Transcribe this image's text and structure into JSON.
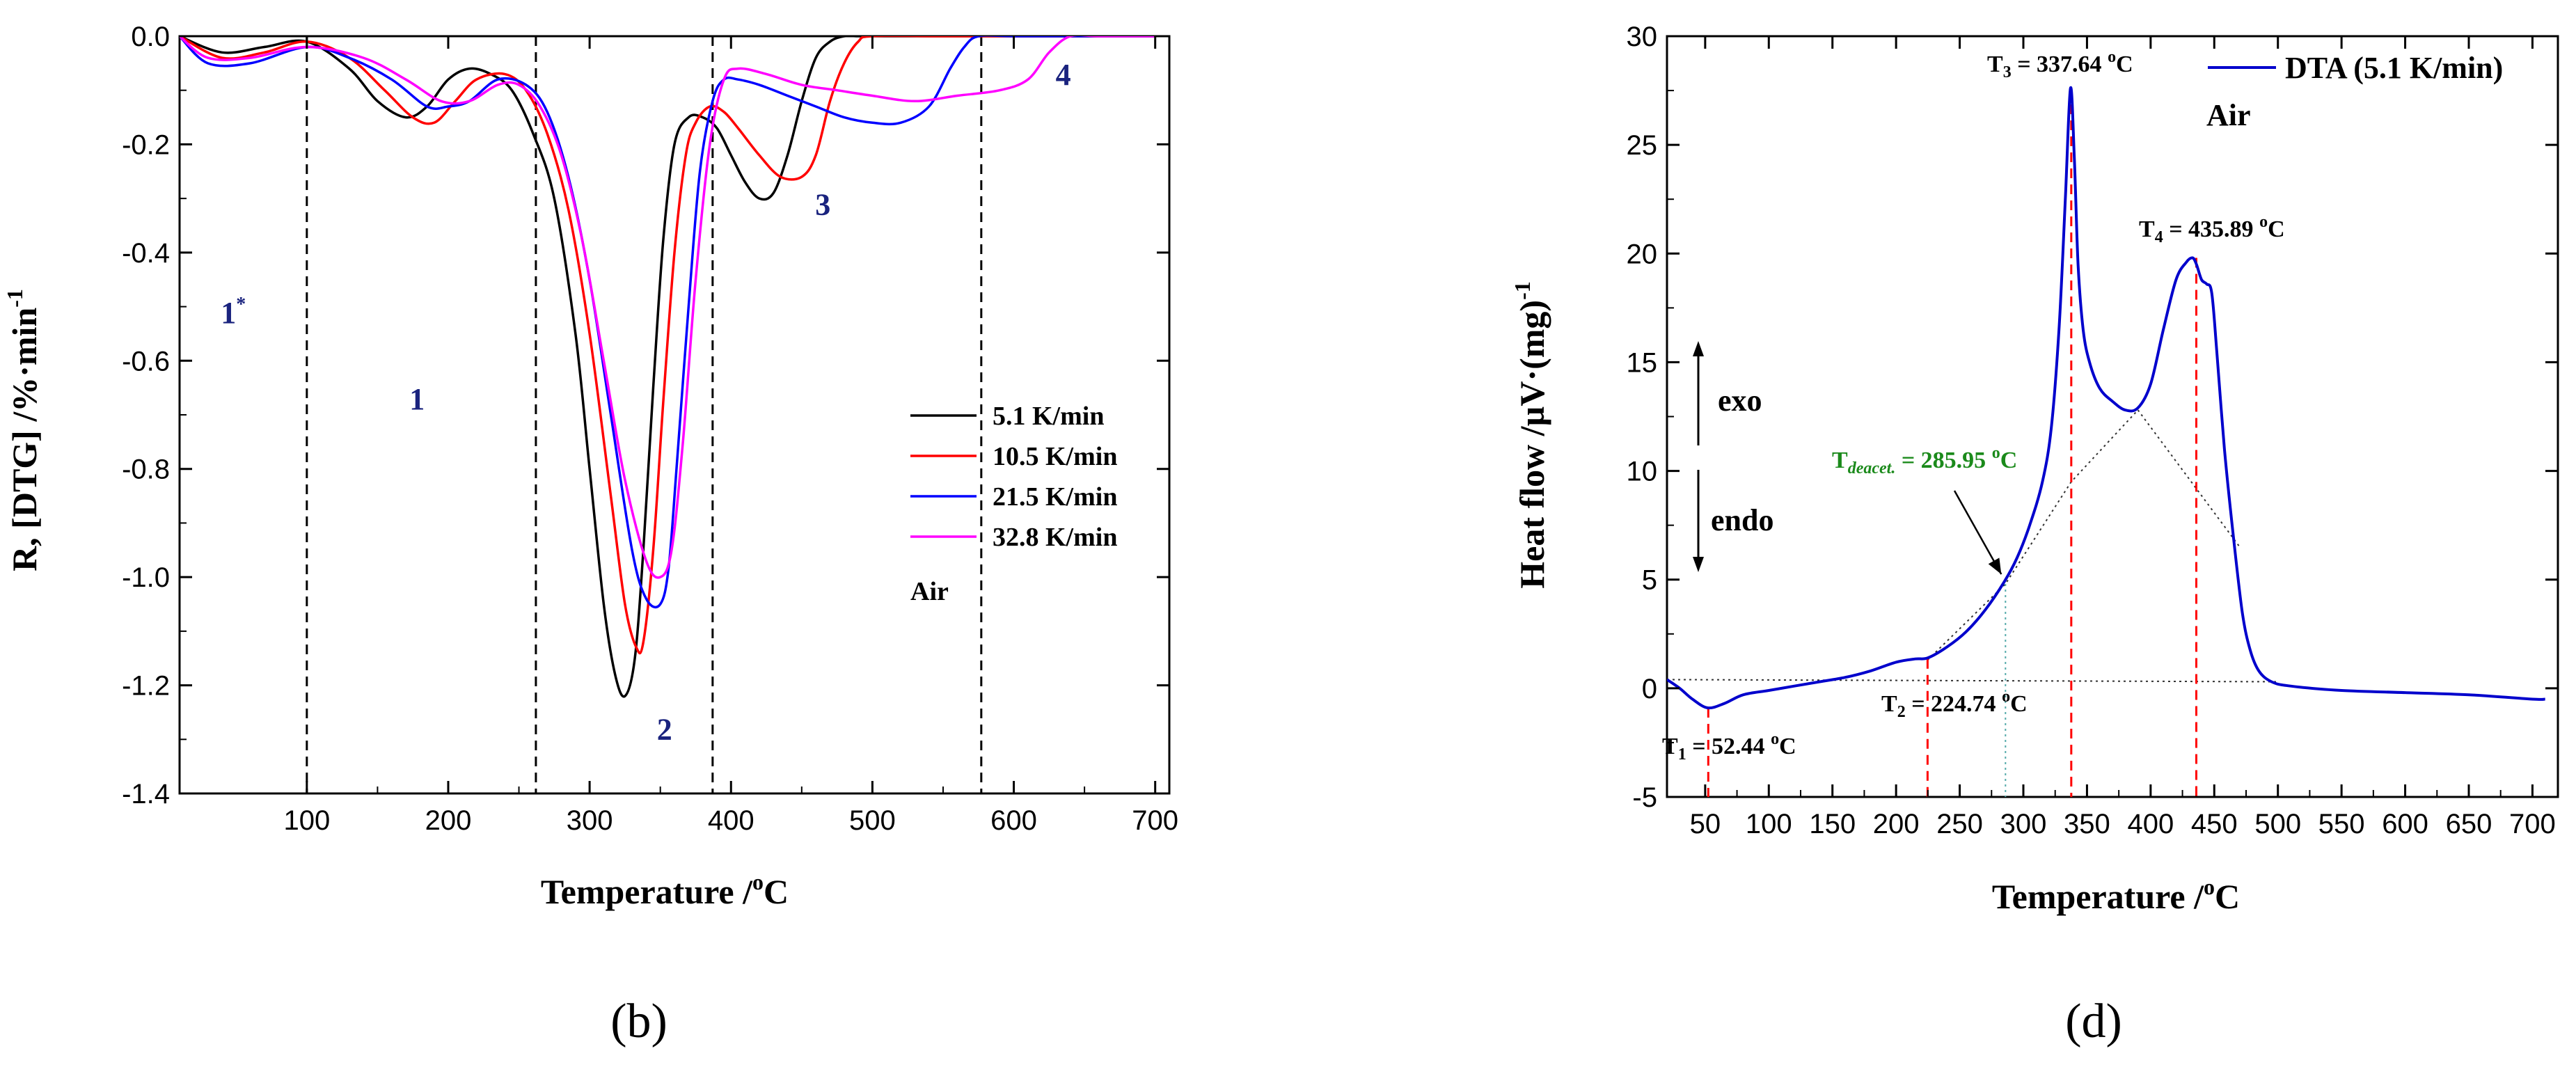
{
  "chart_data": [
    {
      "panel": "(b)",
      "type": "line",
      "xlabel": "Temperature /°C",
      "ylabel": "R, [DTG] /%·min⁻¹",
      "xlim": [
        10,
        710
      ],
      "ylim": [
        -1.4,
        0.0
      ],
      "xticks": [
        100,
        200,
        300,
        400,
        500,
        600,
        700
      ],
      "yticks": [
        0.0,
        -0.2,
        -0.4,
        -0.6,
        -0.8,
        -1.0,
        -1.2,
        -1.4
      ],
      "xtick_labels": [
        "100",
        "200",
        "300",
        "400",
        "500",
        "600",
        "700"
      ],
      "ytick_labels": [
        "0.0",
        "-0.2",
        "-0.4",
        "-0.6",
        "-0.8",
        "-1.0",
        "-1.2",
        "-1.4"
      ],
      "vlines": [
        100,
        262,
        387,
        577
      ],
      "grid": false,
      "legend_position": "right",
      "legend_note": "Air",
      "region_labels": [
        {
          "text": "1",
          "sup": "*",
          "x": 48,
          "y": -0.53
        },
        {
          "text": "1",
          "sup": "",
          "x": 178,
          "y": -0.69
        },
        {
          "text": "2",
          "sup": "",
          "x": 353,
          "y": -1.3
        },
        {
          "text": "3",
          "sup": "",
          "x": 465,
          "y": -0.33
        },
        {
          "text": "4",
          "sup": "",
          "x": 635,
          "y": -0.09
        }
      ],
      "series": [
        {
          "name": "5.1 K/min",
          "color": "#000000",
          "x": [
            10,
            40,
            70,
            100,
            130,
            150,
            170,
            185,
            200,
            215,
            230,
            245,
            260,
            275,
            290,
            300,
            310,
            318,
            325,
            332,
            338,
            345,
            352,
            360,
            370,
            380,
            390,
            400,
            410,
            420,
            430,
            440,
            450,
            460,
            470,
            480,
            490,
            500,
            550,
            600,
            650,
            700
          ],
          "y": [
            0.0,
            -0.03,
            -0.02,
            -0.01,
            -0.06,
            -0.12,
            -0.15,
            -0.13,
            -0.08,
            -0.06,
            -0.07,
            -0.1,
            -0.18,
            -0.3,
            -0.55,
            -0.8,
            -1.05,
            -1.18,
            -1.22,
            -1.15,
            -0.95,
            -0.65,
            -0.38,
            -0.2,
            -0.15,
            -0.15,
            -0.17,
            -0.22,
            -0.27,
            -0.3,
            -0.29,
            -0.22,
            -0.12,
            -0.04,
            -0.01,
            0.0,
            0.0,
            0.0,
            0.0,
            0.0,
            0.0,
            0.0
          ]
        },
        {
          "name": "10.5 K/min",
          "color": "#ff0000",
          "x": [
            10,
            40,
            70,
            100,
            130,
            155,
            175,
            190,
            205,
            220,
            240,
            255,
            270,
            285,
            300,
            315,
            325,
            333,
            338,
            345,
            352,
            360,
            368,
            375,
            385,
            395,
            405,
            420,
            435,
            450,
            460,
            470,
            480,
            490,
            500,
            550,
            600,
            650,
            700
          ],
          "y": [
            0.0,
            -0.04,
            -0.03,
            -0.01,
            -0.04,
            -0.1,
            -0.15,
            -0.16,
            -0.12,
            -0.08,
            -0.07,
            -0.1,
            -0.18,
            -0.32,
            -0.55,
            -0.85,
            -1.05,
            -1.13,
            -1.12,
            -0.95,
            -0.68,
            -0.4,
            -0.22,
            -0.16,
            -0.13,
            -0.14,
            -0.17,
            -0.22,
            -0.26,
            -0.26,
            -0.22,
            -0.12,
            -0.05,
            -0.01,
            0.0,
            0.0,
            0.0,
            0.0,
            0.0
          ]
        },
        {
          "name": "21.5 K/min",
          "color": "#0000ff",
          "x": [
            10,
            30,
            60,
            100,
            130,
            160,
            185,
            200,
            215,
            235,
            255,
            270,
            285,
            300,
            315,
            330,
            340,
            350,
            356,
            362,
            370,
            378,
            387,
            395,
            405,
            420,
            440,
            460,
            480,
            500,
            520,
            540,
            555,
            565,
            575,
            600,
            650,
            700
          ],
          "y": [
            0.0,
            -0.05,
            -0.05,
            -0.02,
            -0.04,
            -0.08,
            -0.13,
            -0.13,
            -0.12,
            -0.08,
            -0.09,
            -0.14,
            -0.26,
            -0.45,
            -0.7,
            -0.95,
            -1.04,
            -1.05,
            -0.98,
            -0.78,
            -0.5,
            -0.25,
            -0.12,
            -0.08,
            -0.08,
            -0.09,
            -0.11,
            -0.13,
            -0.15,
            -0.16,
            -0.16,
            -0.13,
            -0.06,
            -0.02,
            0.0,
            0.0,
            0.0,
            0.0
          ]
        },
        {
          "name": "32.8 K/min",
          "color": "#ff00ff",
          "x": [
            10,
            30,
            60,
            100,
            140,
            170,
            195,
            215,
            235,
            250,
            265,
            280,
            295,
            310,
            325,
            340,
            350,
            358,
            366,
            375,
            385,
            395,
            405,
            425,
            450,
            475,
            500,
            530,
            560,
            590,
            610,
            625,
            640,
            660,
            700
          ],
          "y": [
            0.0,
            -0.04,
            -0.04,
            -0.02,
            -0.04,
            -0.08,
            -0.12,
            -0.12,
            -0.09,
            -0.09,
            -0.13,
            -0.22,
            -0.38,
            -0.6,
            -0.82,
            -0.97,
            -1.0,
            -0.95,
            -0.75,
            -0.45,
            -0.2,
            -0.08,
            -0.06,
            -0.07,
            -0.09,
            -0.1,
            -0.11,
            -0.12,
            -0.11,
            -0.1,
            -0.08,
            -0.03,
            0.0,
            0.0,
            0.0
          ]
        }
      ]
    },
    {
      "panel": "(d)",
      "type": "line",
      "xlabel": "Temperature /°C",
      "ylabel": "Heat flow /μV·(mg)⁻¹",
      "xlim": [
        20,
        720
      ],
      "ylim": [
        -5,
        30
      ],
      "xticks": [
        50,
        100,
        150,
        200,
        250,
        300,
        350,
        400,
        450,
        500,
        550,
        600,
        650,
        700
      ],
      "yticks": [
        -5,
        0,
        5,
        10,
        15,
        20,
        25,
        30
      ],
      "xtick_labels": [
        "50",
        "100",
        "150",
        "200",
        "250",
        "300",
        "350",
        "400",
        "450",
        "500",
        "550",
        "600",
        "650",
        "700"
      ],
      "ytick_labels": [
        "-5",
        "0",
        "5",
        "10",
        "15",
        "20",
        "25",
        "30"
      ],
      "grid": false,
      "legend_position": "top-right",
      "legend_note": "Air",
      "series": [
        {
          "name": "DTA (5.1 K/min)",
          "color": "#0000cc",
          "x": [
            20,
            30,
            40,
            52,
            65,
            80,
            100,
            120,
            140,
            160,
            180,
            200,
            215,
            225,
            240,
            255,
            270,
            285,
            295,
            305,
            315,
            322,
            328,
            333,
            337,
            340,
            343,
            347,
            352,
            360,
            370,
            380,
            390,
            400,
            410,
            420,
            428,
            433,
            436,
            440,
            444,
            448,
            452,
            458,
            465,
            472,
            478,
            485,
            495,
            510,
            550,
            600,
            650,
            700,
            710
          ],
          "y": [
            0.4,
            0.0,
            -0.5,
            -0.9,
            -0.7,
            -0.3,
            -0.1,
            0.1,
            0.3,
            0.5,
            0.8,
            1.2,
            1.35,
            1.4,
            1.9,
            2.6,
            3.6,
            4.9,
            6.0,
            7.5,
            9.5,
            12.0,
            16.5,
            22.5,
            27.6,
            24.5,
            19.5,
            16.5,
            15.0,
            13.8,
            13.2,
            12.8,
            12.9,
            14.0,
            16.5,
            18.8,
            19.6,
            19.8,
            19.5,
            18.8,
            18.6,
            18.2,
            15.5,
            11.0,
            7.0,
            3.5,
            1.8,
            0.8,
            0.3,
            0.1,
            -0.1,
            -0.2,
            -0.3,
            -0.5,
            -0.5
          ]
        }
      ],
      "baselines": [
        {
          "x": [
            20,
            500
          ],
          "y": [
            0.4,
            0.3
          ]
        },
        {
          "x": [
            224.74,
            285.95,
            337.64,
            390
          ],
          "y": [
            1.3,
            4.8,
            9.5,
            12.8
          ]
        },
        {
          "x": [
            390,
            470
          ],
          "y": [
            12.8,
            6.5
          ]
        }
      ],
      "markers": [
        {
          "x": 52.44,
          "label": "T₁ = 52.44 °C",
          "y_top": -0.9
        },
        {
          "x": 224.74,
          "label": "T₂ = 224.74 °C",
          "y_top": 1.35
        },
        {
          "x": 337.64,
          "label": "T₃ = 337.64 °C",
          "y_top": 27.6
        },
        {
          "x": 435.89,
          "label": "T₄ = 435.89 °C",
          "y_top": 19.8
        }
      ],
      "annotations": {
        "t1_label": "T1 = 52.44 °C",
        "t2_label": "T2 = 224.74 °C",
        "t3_label": "T3 = 337.64 °C",
        "t4_label": "T4 = 435.89 °C",
        "tdeacet_label": "Tdeacet. = 285.95 °C",
        "tdeacet_x": 285.95,
        "tdeacet_y": 4.8,
        "exo": "exo",
        "endo": "endo"
      }
    }
  ],
  "panels": {
    "b_label": "(b)",
    "d_label": "(d)"
  },
  "text": {
    "b_ylabel_main": "R, [DTG] /%·min",
    "b_ylabel_sup": "-1",
    "xlabel_main": "Temperature /",
    "xlabel_deg": "o",
    "xlabel_unit": "C",
    "d_ylabel_main": "Heat flow /µV·(mg)",
    "d_ylabel_sup": "-1",
    "legend_air": "Air",
    "d_legend_name": "DTA (5.1 K/min)",
    "d_legend_air": "Air"
  }
}
